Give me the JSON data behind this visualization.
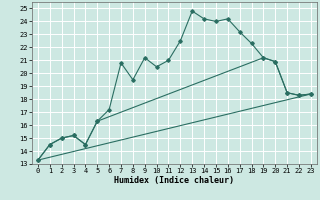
{
  "xlabel": "Humidex (Indice chaleur)",
  "bg_color": "#cde8e2",
  "grid_color": "#ffffff",
  "line_color": "#2a6e62",
  "xlim": [
    -0.5,
    23.5
  ],
  "ylim": [
    13,
    25.5
  ],
  "xticks": [
    0,
    1,
    2,
    3,
    4,
    5,
    6,
    7,
    8,
    9,
    10,
    11,
    12,
    13,
    14,
    15,
    16,
    17,
    18,
    19,
    20,
    21,
    22,
    23
  ],
  "yticks": [
    13,
    14,
    15,
    16,
    17,
    18,
    19,
    20,
    21,
    22,
    23,
    24,
    25
  ],
  "line1_x": [
    0,
    1,
    2,
    3,
    4,
    5,
    6,
    7,
    8,
    9,
    10,
    11,
    12,
    13,
    14,
    15,
    16,
    17,
    18,
    19,
    20,
    21,
    22,
    23
  ],
  "line1_y": [
    13.3,
    14.5,
    15.0,
    15.2,
    14.5,
    16.3,
    17.2,
    20.8,
    19.5,
    21.2,
    20.5,
    21.0,
    22.5,
    24.8,
    24.2,
    24.0,
    24.2,
    23.2,
    22.3,
    21.2,
    20.9,
    18.5,
    18.3,
    18.4
  ],
  "line2_x": [
    0,
    1,
    2,
    3,
    4,
    5,
    19,
    20,
    21,
    22,
    23
  ],
  "line2_y": [
    13.3,
    14.5,
    15.0,
    15.2,
    14.5,
    16.3,
    21.2,
    20.9,
    18.5,
    18.3,
    18.4
  ],
  "line3_x": [
    0,
    23
  ],
  "line3_y": [
    13.3,
    18.4
  ]
}
